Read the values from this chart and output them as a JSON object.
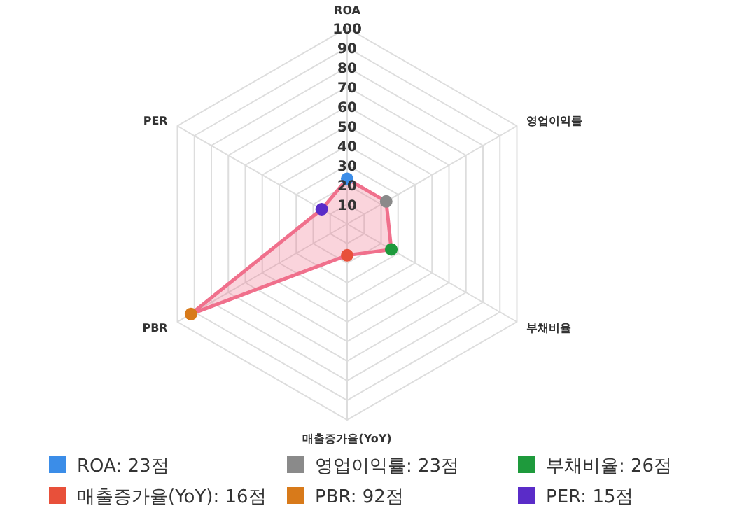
{
  "chart_data": {
    "type": "radar",
    "categories": [
      "ROA",
      "영업이익률",
      "부채비율",
      "매출증가율(YoY)",
      "PBR",
      "PER"
    ],
    "series": [
      {
        "color": "#f0708c",
        "values": [
          23,
          23,
          26,
          16,
          92,
          15
        ]
      }
    ],
    "colors": [
      "#3b8de8",
      "#8a8a8a",
      "#1e9a3c",
      "#e8503a",
      "#d87a1a",
      "#5a2cc8"
    ],
    "annotations": [
      "ROA: 23점",
      "영업이익률: 23점",
      "부채비율: 26점",
      "매출증가율(YoY): 16점",
      "PBR: 92점",
      "PER: 15점"
    ],
    "ylim": [
      0,
      100
    ],
    "yticks": [
      10,
      20,
      30,
      40,
      50,
      60,
      70,
      80,
      90,
      100
    ],
    "grid": true,
    "marker": "circle"
  }
}
